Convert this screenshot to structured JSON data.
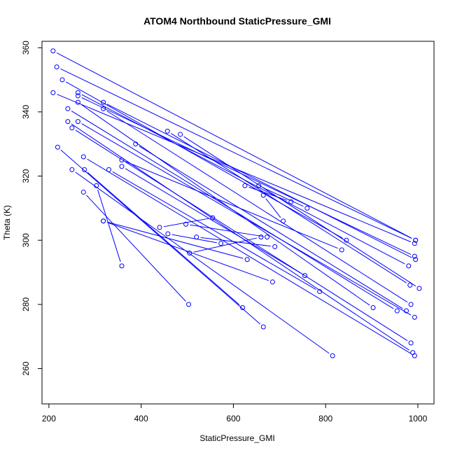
{
  "chart_data": {
    "type": "scatter",
    "title": "ATOM4 Northbound StaticPressure_GMI",
    "xlabel": "StaticPressure_GMI",
    "ylabel": "Theta (K)",
    "xlim": [
      185,
      1035
    ],
    "ylim": [
      249,
      362
    ],
    "xticks": [
      200,
      400,
      600,
      800,
      1000
    ],
    "yticks": [
      260,
      280,
      300,
      320,
      340,
      360
    ],
    "grid": false,
    "legend": "none",
    "color": "#0000ff",
    "marker": "open-circle",
    "connected": true,
    "series": [
      {
        "x": [
          209,
          995
        ],
        "y": [
          359,
          300
        ]
      },
      {
        "x": [
          217,
          995
        ],
        "y": [
          354,
          300
        ]
      },
      {
        "x": [
          229,
          845
        ],
        "y": [
          350,
          300
        ]
      },
      {
        "x": [
          209,
          993
        ],
        "y": [
          346,
          299
        ]
      },
      {
        "x": [
          263,
          980
        ],
        "y": [
          346,
          292
        ]
      },
      {
        "x": [
          263,
          993
        ],
        "y": [
          345,
          295
        ]
      },
      {
        "x": [
          318,
          995
        ],
        "y": [
          343,
          294
        ]
      },
      {
        "x": [
          263,
          903
        ],
        "y": [
          343,
          279
        ]
      },
      {
        "x": [
          318,
          985
        ],
        "y": [
          341,
          280
        ]
      },
      {
        "x": [
          241,
          955
        ],
        "y": [
          341,
          278
        ]
      },
      {
        "x": [
          457,
          983
        ],
        "y": [
          334,
          286
        ]
      },
      {
        "x": [
          485,
          1003
        ],
        "y": [
          333,
          285
        ]
      },
      {
        "x": [
          263,
          993
        ],
        "y": [
          337,
          276
        ]
      },
      {
        "x": [
          250,
          985
        ],
        "y": [
          335,
          268
        ]
      },
      {
        "x": [
          241,
          989
        ],
        "y": [
          337,
          265
        ]
      },
      {
        "x": [
          388,
          975
        ],
        "y": [
          330,
          278
        ]
      },
      {
        "x": [
          275,
          993
        ],
        "y": [
          326,
          264
        ]
      },
      {
        "x": [
          358,
          835
        ],
        "y": [
          325,
          297
        ]
      },
      {
        "x": [
          358,
          755
        ],
        "y": [
          323,
          289
        ]
      },
      {
        "x": [
          330,
          787
        ],
        "y": [
          322,
          284
        ]
      },
      {
        "x": [
          277,
          620
        ],
        "y": [
          322,
          279
        ]
      },
      {
        "x": [
          219,
          665
        ],
        "y": [
          329,
          273
        ]
      },
      {
        "x": [
          250,
          815
        ],
        "y": [
          322,
          264
        ]
      },
      {
        "x": [
          275,
          503
        ],
        "y": [
          315,
          280
        ]
      },
      {
        "x": [
          303,
          358
        ],
        "y": [
          317,
          292
        ]
      },
      {
        "x": [
          318,
          685
        ],
        "y": [
          306,
          287
        ]
      },
      {
        "x": [
          318,
          630
        ],
        "y": [
          306,
          294
        ]
      },
      {
        "x": [
          440,
          555
        ],
        "y": [
          304,
          307
        ]
      },
      {
        "x": [
          458,
          573
        ],
        "y": [
          302,
          299
        ]
      },
      {
        "x": [
          497,
          673
        ],
        "y": [
          305,
          301
        ]
      },
      {
        "x": [
          520,
          690
        ],
        "y": [
          301,
          298
        ]
      },
      {
        "x": [
          505,
          660
        ],
        "y": [
          296,
          301
        ]
      },
      {
        "x": [
          625,
          725
        ],
        "y": [
          317,
          312
        ]
      },
      {
        "x": [
          655,
          760
        ],
        "y": [
          317,
          310
        ]
      },
      {
        "x": [
          665,
          708
        ],
        "y": [
          314,
          306
        ]
      }
    ]
  }
}
